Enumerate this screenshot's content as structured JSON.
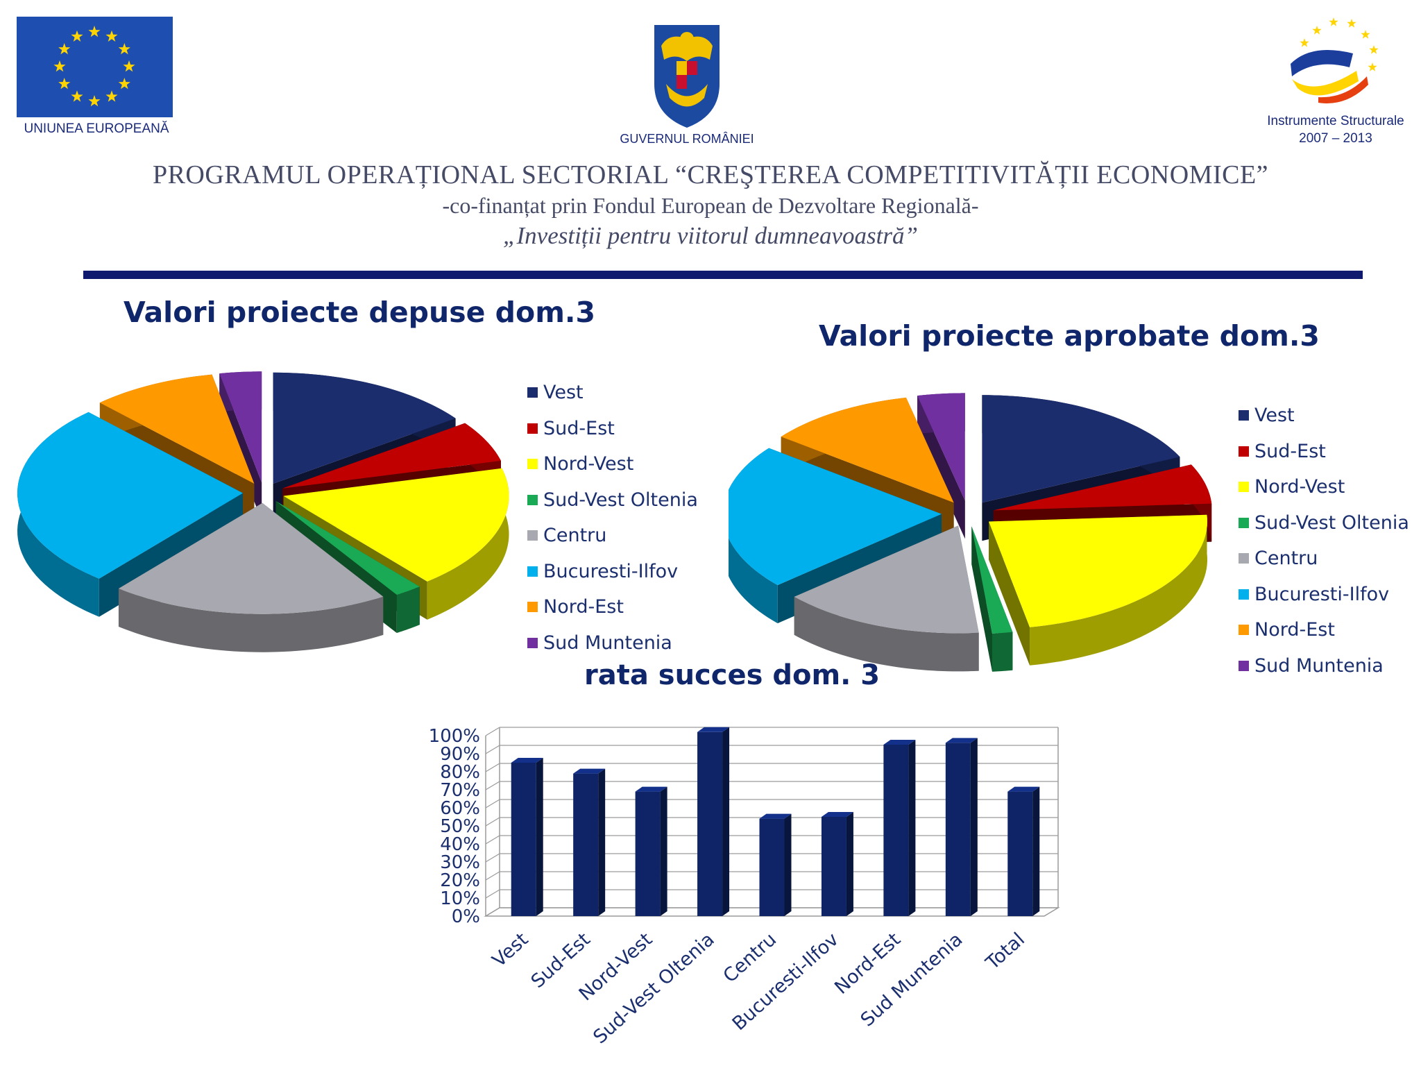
{
  "header": {
    "eu_caption": "UNIUNEA EUROPEANĂ",
    "gov_caption": "GUVERNUL ROMÂNIEI",
    "is_caption_line1": "Instrumente Structurale",
    "is_caption_line2": "2007 – 2013",
    "program_title": "PROGRAMUL OPERAȚIONAL SECTORIAL “CREŞTEREA COMPETITIVITĂȚII ECONOMICE”",
    "cofinance": "-co-finanțat prin Fondul European de Dezvoltare Regională-",
    "slogan": "„Investiții pentru viitorul dumneavoastră”"
  },
  "colors": {
    "rule": "#0f1a6e",
    "eu_flag": "#1e4fb0",
    "eu_stars": "#ffd400",
    "bar": "#0e2466"
  },
  "chart_data": [
    {
      "type": "pie",
      "title": "Valori proiecte depuse dom.3",
      "categories": [
        "Vest",
        "Sud-Est",
        "Nord-Vest",
        "Sud-Vest Oltenia",
        "Centru",
        "Bucuresti-Ilfov",
        "Nord-Est",
        "Sud Muntenia"
      ],
      "values": [
        15,
        6,
        18,
        2,
        20,
        27,
        9,
        3
      ],
      "colors": [
        "#1c2d6e",
        "#c00000",
        "#ffff00",
        "#1aaa55",
        "#a8a8b0",
        "#00b0ec",
        "#ff9900",
        "#7030a0"
      ],
      "legend_position": "right"
    },
    {
      "type": "pie",
      "title": "Valori proiecte aprobate dom.3",
      "categories": [
        "Vest",
        "Sud-Est",
        "Nord-Vest",
        "Sud-Vest Oltenia",
        "Centru",
        "Bucuresti-Ilfov",
        "Nord-Est",
        "Sud Muntenia"
      ],
      "values": [
        18,
        6,
        23,
        1.5,
        15,
        22,
        11,
        3.5
      ],
      "colors": [
        "#1c2d6e",
        "#c00000",
        "#ffff00",
        "#1aaa55",
        "#a8a8b0",
        "#00b0ec",
        "#ff9900",
        "#7030a0"
      ],
      "legend_position": "right"
    },
    {
      "type": "bar",
      "title": "rata succes dom. 3",
      "categories": [
        "Vest",
        "Sud-Est",
        "Nord-Vest",
        "Sud-Vest Oltenia",
        "Centru",
        "Bucuresti-Ilfov",
        "Nord-Est",
        "Sud Muntenia",
        "Total"
      ],
      "values": [
        85,
        79,
        69,
        102,
        54,
        55,
        95,
        96,
        69
      ],
      "ylim": [
        0,
        100
      ],
      "yticks": [
        "0%",
        "10%",
        "20%",
        "30%",
        "40%",
        "50%",
        "60%",
        "70%",
        "80%",
        "90%",
        "100%"
      ],
      "grid": true
    }
  ]
}
